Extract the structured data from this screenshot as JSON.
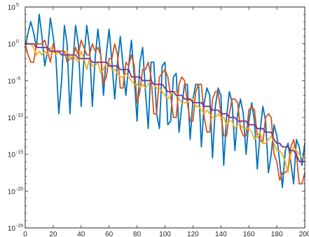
{
  "chart_data": {
    "type": "line",
    "title": "",
    "xlabel": "",
    "ylabel": "",
    "xlim": [
      0,
      200
    ],
    "ylim_exponent": [
      -25,
      5
    ],
    "yscale": "log",
    "grid": false,
    "legend": "none",
    "x_ticks": [
      "0",
      "20",
      "40",
      "60",
      "80",
      "100",
      "120",
      "140",
      "160",
      "180",
      "200"
    ],
    "y_ticks": [
      {
        "base": "10",
        "exp": "5"
      },
      {
        "base": "10",
        "exp": "0"
      },
      {
        "base": "10",
        "exp": "-5"
      },
      {
        "base": "10",
        "exp": "-10"
      },
      {
        "base": "10",
        "exp": "-15"
      },
      {
        "base": "10",
        "exp": "-20"
      },
      {
        "base": "10",
        "exp": "-25"
      }
    ],
    "series": [
      {
        "color": "#0072BD",
        "x": [
          0,
          2,
          4,
          6,
          8,
          10,
          12,
          14,
          16,
          18,
          20,
          22,
          24,
          26,
          28,
          30,
          32,
          34,
          36,
          38,
          40,
          42,
          44,
          46,
          48,
          50,
          52,
          54,
          56,
          58,
          60,
          62,
          64,
          66,
          68,
          70,
          72,
          74,
          76,
          78,
          80,
          82,
          84,
          86,
          88,
          90,
          92,
          94,
          96,
          98,
          100,
          102,
          104,
          106,
          108,
          110,
          112,
          114,
          116,
          118,
          120,
          122,
          124,
          126,
          128,
          130,
          132,
          134,
          136,
          138,
          140,
          142,
          144,
          146,
          148,
          150,
          152,
          154,
          156,
          158,
          160,
          162,
          164,
          166,
          168,
          170,
          172,
          174,
          176,
          178,
          180,
          182,
          184,
          186,
          188,
          190,
          192,
          194,
          196,
          198,
          200
        ],
        "values": [
          -0.5,
          1.5,
          3.0,
          1.5,
          -0.5,
          4.0,
          1.0,
          -3.0,
          -1.0,
          3.5,
          1.0,
          -2.0,
          -9.5,
          -5.0,
          2.5,
          0.0,
          -9.5,
          -3.0,
          2.5,
          0.0,
          -8.5,
          -2.0,
          2.5,
          -0.5,
          -8.5,
          -2.0,
          2.0,
          -1.5,
          -7.0,
          -1.5,
          2.0,
          -2.5,
          -7.5,
          -2.5,
          1.0,
          -3.0,
          -7.0,
          -3.0,
          0.5,
          -4.5,
          -10.5,
          -2.5,
          -0.5,
          -6.5,
          -11.5,
          -2.5,
          -2.5,
          -9.5,
          -11.5,
          -3.0,
          -2.5,
          -11.0,
          -10.5,
          -4.5,
          -4.0,
          -12.0,
          -8.5,
          -5.5,
          -5.5,
          -13.0,
          -7.5,
          -5.5,
          -5.5,
          -14.0,
          -8.0,
          -6.0,
          -7.0,
          -15.5,
          -8.5,
          -6.0,
          -7.0,
          -16.5,
          -10.0,
          -6.5,
          -8.0,
          -14.5,
          -9.5,
          -7.5,
          -9.5,
          -15.0,
          -10.5,
          -8.0,
          -10.5,
          -17.0,
          -12.0,
          -8.5,
          -10.5,
          -17.5,
          -15.0,
          -11.0,
          -12.5,
          -16.0,
          -19.5,
          -14.5,
          -13.5,
          -16.0,
          -19.0,
          -13.0,
          -14.0,
          -16.5,
          -13.5
        ]
      },
      {
        "color": "#D95319",
        "x": [
          0,
          2,
          4,
          6,
          8,
          10,
          12,
          14,
          16,
          18,
          20,
          22,
          24,
          26,
          28,
          30,
          32,
          34,
          36,
          38,
          40,
          42,
          44,
          46,
          48,
          50,
          52,
          54,
          56,
          58,
          60,
          62,
          64,
          66,
          68,
          70,
          72,
          74,
          76,
          78,
          80,
          82,
          84,
          86,
          88,
          90,
          92,
          94,
          96,
          98,
          100,
          102,
          104,
          106,
          108,
          110,
          112,
          114,
          116,
          118,
          120,
          122,
          124,
          126,
          128,
          130,
          132,
          134,
          136,
          138,
          140,
          142,
          144,
          146,
          148,
          150,
          152,
          154,
          156,
          158,
          160,
          162,
          164,
          166,
          168,
          170,
          172,
          174,
          176,
          178,
          180,
          182,
          184,
          186,
          188,
          190,
          192,
          194,
          196,
          198,
          200
        ],
        "values": [
          0.0,
          -1.5,
          -2.5,
          -2.5,
          0.0,
          0.0,
          0.0,
          0.5,
          -1.0,
          -2.5,
          0.0,
          -1.5,
          -1.0,
          -1.0,
          -1.0,
          -2.5,
          -2.0,
          -2.0,
          -0.5,
          -1.5,
          0.5,
          -0.5,
          -1.5,
          -1.5,
          0.0,
          -1.0,
          -0.5,
          -1.5,
          -5.5,
          -4.5,
          -2.0,
          -2.0,
          0.0,
          -1.5,
          -6.0,
          -6.0,
          -2.5,
          -3.0,
          -1.5,
          -3.0,
          -8.0,
          -6.5,
          -3.5,
          -3.5,
          -2.5,
          -4.5,
          -9.5,
          -9.5,
          -4.5,
          -4.0,
          -3.5,
          -4.5,
          -7.0,
          -10.0,
          -10.0,
          -5.5,
          -4.5,
          -5.0,
          -8.0,
          -10.5,
          -10.5,
          -6.5,
          -5.5,
          -5.5,
          -10.0,
          -12.0,
          -12.0,
          -7.5,
          -6.5,
          -6.5,
          -9.5,
          -12.5,
          -12.5,
          -9.5,
          -7.5,
          -7.5,
          -8.0,
          -11.5,
          -12.5,
          -12.5,
          -9.0,
          -8.5,
          -9.0,
          -12.5,
          -13.0,
          -13.5,
          -10.0,
          -9.5,
          -10.0,
          -15.0,
          -16.0,
          -18.5,
          -17.5,
          -17.5,
          -17.0,
          -14.0,
          -13.0,
          -15.0,
          -19.0,
          -19.0,
          -17.5
        ]
      },
      {
        "color": "#EDB120",
        "x": [
          0,
          2,
          4,
          6,
          8,
          10,
          12,
          14,
          16,
          18,
          20,
          22,
          24,
          26,
          28,
          30,
          32,
          34,
          36,
          38,
          40,
          42,
          44,
          46,
          48,
          50,
          52,
          54,
          56,
          58,
          60,
          62,
          64,
          66,
          68,
          70,
          72,
          74,
          76,
          78,
          80,
          82,
          84,
          86,
          88,
          90,
          92,
          94,
          96,
          98,
          100,
          102,
          104,
          106,
          108,
          110,
          112,
          114,
          116,
          118,
          120,
          122,
          124,
          126,
          128,
          130,
          132,
          134,
          136,
          138,
          140,
          142,
          144,
          146,
          148,
          150,
          152,
          154,
          156,
          158,
          160,
          162,
          164,
          166,
          168,
          170,
          172,
          174,
          176,
          178,
          180,
          182,
          184,
          186,
          188,
          190,
          192,
          194,
          196,
          198,
          200
        ],
        "values": [
          0.0,
          0.0,
          0.0,
          -0.5,
          -1.5,
          -1.0,
          -1.5,
          -1.0,
          -1.5,
          -0.5,
          -1.0,
          -1.5,
          -1.0,
          -1.5,
          -1.5,
          -1.0,
          -2.0,
          -1.5,
          -2.0,
          -2.5,
          -1.0,
          -2.0,
          -3.5,
          -2.0,
          -3.0,
          -3.0,
          -2.5,
          -4.0,
          -3.5,
          -2.5,
          -2.5,
          -3.5,
          -3.5,
          -4.0,
          -4.5,
          -4.5,
          -4.0,
          -4.5,
          -5.0,
          -5.5,
          -5.5,
          -6.0,
          -5.5,
          -6.0,
          -5.5,
          -5.0,
          -5.5,
          -6.0,
          -6.0,
          -6.5,
          -7.0,
          -7.5,
          -7.0,
          -6.5,
          -6.5,
          -7.5,
          -8.0,
          -8.0,
          -8.0,
          -7.5,
          -7.5,
          -8.5,
          -8.5,
          -9.0,
          -9.5,
          -9.0,
          -9.5,
          -10.0,
          -10.0,
          -9.5,
          -10.0,
          -10.0,
          -11.0,
          -10.5,
          -10.5,
          -11.5,
          -11.0,
          -11.0,
          -11.5,
          -11.5,
          -11.5,
          -12.0,
          -13.0,
          -12.5,
          -12.0,
          -13.5,
          -13.5,
          -13.0,
          -12.5,
          -13.5,
          -14.5,
          -14.5,
          -15.0,
          -16.0,
          -17.5,
          -15.0,
          -14.0,
          -14.5,
          -15.0,
          -15.5,
          -15.5
        ]
      },
      {
        "color": "#7E2F8E",
        "x": [
          0,
          2,
          4,
          6,
          8,
          10,
          12,
          14,
          16,
          18,
          20,
          22,
          24,
          26,
          28,
          30,
          32,
          34,
          36,
          38,
          40,
          42,
          44,
          46,
          48,
          50,
          52,
          54,
          56,
          58,
          60,
          62,
          64,
          66,
          68,
          70,
          72,
          74,
          76,
          78,
          80,
          82,
          84,
          86,
          88,
          90,
          92,
          94,
          96,
          98,
          100,
          102,
          104,
          106,
          108,
          110,
          112,
          114,
          116,
          118,
          120,
          122,
          124,
          126,
          128,
          130,
          132,
          134,
          136,
          138,
          140,
          142,
          144,
          146,
          148,
          150,
          152,
          154,
          156,
          158,
          160,
          162,
          164,
          166,
          168,
          170,
          172,
          174,
          176,
          178,
          180,
          182,
          184,
          186,
          188,
          190,
          192,
          194,
          196,
          198,
          200
        ],
        "values": [
          0.0,
          0.0,
          0.0,
          0.0,
          -0.5,
          -0.5,
          -0.5,
          -0.5,
          -0.5,
          -1.0,
          -1.0,
          -1.0,
          -1.0,
          -1.5,
          -1.5,
          -1.5,
          -1.5,
          -1.5,
          -1.5,
          -2.0,
          -2.0,
          -2.0,
          -2.0,
          -2.0,
          -2.5,
          -2.5,
          -2.5,
          -2.5,
          -2.5,
          -2.5,
          -3.0,
          -3.0,
          -3.0,
          -3.0,
          -3.5,
          -3.5,
          -3.5,
          -3.5,
          -4.5,
          -4.5,
          -4.5,
          -4.5,
          -5.0,
          -5.0,
          -5.0,
          -5.0,
          -5.5,
          -5.5,
          -5.5,
          -5.5,
          -6.0,
          -6.5,
          -6.5,
          -6.5,
          -7.0,
          -7.0,
          -7.0,
          -7.5,
          -7.5,
          -7.5,
          -8.0,
          -8.0,
          -8.0,
          -8.0,
          -8.5,
          -8.5,
          -8.5,
          -9.0,
          -9.0,
          -9.0,
          -9.5,
          -9.5,
          -9.5,
          -10.0,
          -10.0,
          -10.0,
          -10.5,
          -10.5,
          -10.5,
          -10.5,
          -11.0,
          -11.0,
          -11.0,
          -11.5,
          -11.5,
          -11.5,
          -12.0,
          -12.0,
          -12.0,
          -13.0,
          -13.5,
          -13.5,
          -14.0,
          -14.0,
          -14.0,
          -14.5,
          -14.5,
          -15.0,
          -16.0,
          -16.0,
          -16.0
        ]
      }
    ]
  }
}
